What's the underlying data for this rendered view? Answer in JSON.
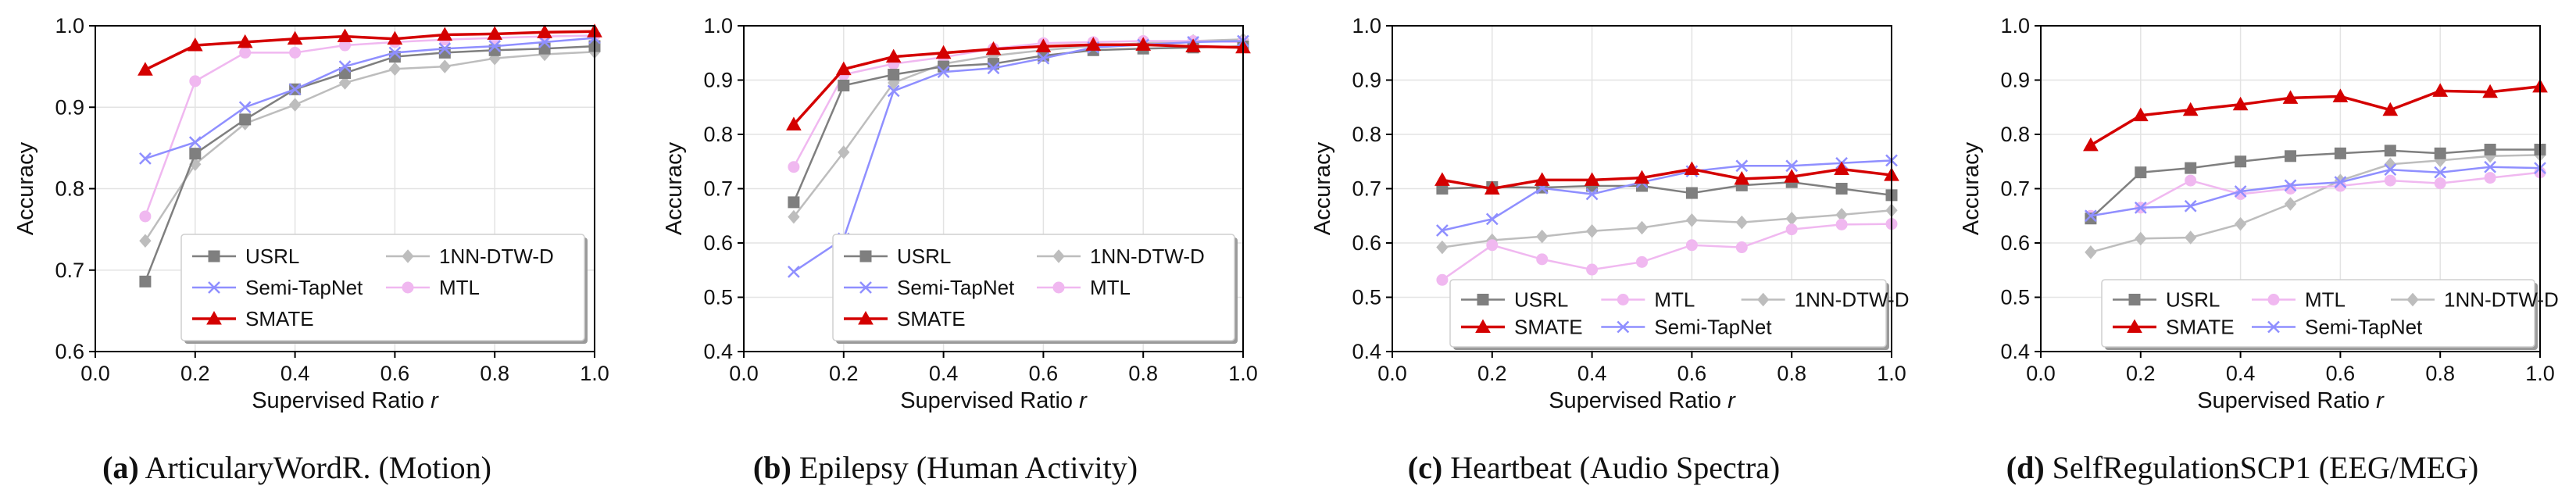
{
  "chart_data": [
    {
      "type": "line",
      "caption": {
        "label": "(a)",
        "text": "ArticularyWordR. (Motion)"
      },
      "xlabel": "Supervised Ratio",
      "xlabel_var": "r",
      "ylabel": "Accuracy",
      "xlim": [
        0.0,
        1.0
      ],
      "ylim": [
        0.6,
        1.0
      ],
      "xticks": [
        "0.0",
        "0.2",
        "0.4",
        "0.6",
        "0.8",
        "1.0"
      ],
      "yticks": [
        "0.6",
        "0.7",
        "0.8",
        "0.9",
        "1.0"
      ],
      "grid": true,
      "legend_placement": "lower-center",
      "legend_cols": 2,
      "x": [
        0.1,
        0.2,
        0.3,
        0.4,
        0.5,
        0.6,
        0.7,
        0.8,
        0.9,
        1.0
      ],
      "series": [
        {
          "name": "USRL",
          "values": [
            0.686,
            0.843,
            0.885,
            0.922,
            0.942,
            0.962,
            0.967,
            0.97,
            0.972,
            0.975
          ]
        },
        {
          "name": "Semi-TapNet",
          "values": [
            0.837,
            0.857,
            0.9,
            0.922,
            0.95,
            0.967,
            0.972,
            0.975,
            0.98,
            0.985
          ]
        },
        {
          "name": "SMATE",
          "values": [
            0.946,
            0.976,
            0.98,
            0.984,
            0.987,
            0.984,
            0.989,
            0.99,
            0.992,
            0.993
          ]
        },
        {
          "name": "1NN-DTW-D",
          "values": [
            0.736,
            0.83,
            0.88,
            0.903,
            0.93,
            0.947,
            0.95,
            0.96,
            0.965,
            0.968
          ]
        },
        {
          "name": "MTL",
          "values": [
            0.766,
            0.932,
            0.967,
            0.967,
            0.976,
            0.98,
            0.983,
            0.985,
            0.987,
            0.988
          ]
        }
      ]
    },
    {
      "type": "line",
      "caption": {
        "label": "(b)",
        "text": "Epilepsy (Human Activity)"
      },
      "xlabel": "Supervised Ratio",
      "xlabel_var": "r",
      "ylabel": "Accuracy",
      "xlim": [
        0.0,
        1.0
      ],
      "ylim": [
        0.4,
        1.0
      ],
      "xticks": [
        "0.0",
        "0.2",
        "0.4",
        "0.6",
        "0.8",
        "1.0"
      ],
      "yticks": [
        "0.4",
        "0.5",
        "0.6",
        "0.7",
        "0.8",
        "0.9",
        "1.0"
      ],
      "grid": true,
      "legend_placement": "lower-center",
      "legend_cols": 2,
      "x": [
        0.1,
        0.2,
        0.3,
        0.4,
        0.5,
        0.6,
        0.7,
        0.8,
        0.9,
        1.0
      ],
      "series": [
        {
          "name": "USRL",
          "values": [
            0.675,
            0.89,
            0.91,
            0.925,
            0.93,
            0.945,
            0.955,
            0.958,
            0.96,
            0.962
          ]
        },
        {
          "name": "Semi-TapNet",
          "values": [
            0.547,
            0.608,
            0.88,
            0.915,
            0.922,
            0.94,
            0.96,
            0.965,
            0.97,
            0.972
          ]
        },
        {
          "name": "SMATE",
          "values": [
            0.818,
            0.92,
            0.943,
            0.95,
            0.957,
            0.962,
            0.965,
            0.965,
            0.962,
            0.96
          ]
        },
        {
          "name": "1NN-DTW-D",
          "values": [
            0.648,
            0.767,
            0.895,
            0.93,
            0.945,
            0.955,
            0.963,
            0.968,
            0.972,
            0.975
          ]
        },
        {
          "name": "MTL",
          "values": [
            0.74,
            0.91,
            0.93,
            0.942,
            0.958,
            0.968,
            0.97,
            0.972,
            0.972,
            0.97
          ]
        }
      ]
    },
    {
      "type": "line",
      "caption": {
        "label": "(c)",
        "text": "Heartbeat (Audio Spectra)"
      },
      "xlabel": "Supervised Ratio",
      "xlabel_var": "r",
      "ylabel": "Accuracy",
      "xlim": [
        0.0,
        1.0
      ],
      "ylim": [
        0.4,
        1.0
      ],
      "xticks": [
        "0.0",
        "0.2",
        "0.4",
        "0.6",
        "0.8",
        "1.0"
      ],
      "yticks": [
        "0.4",
        "0.5",
        "0.6",
        "0.7",
        "0.8",
        "0.9",
        "1.0"
      ],
      "grid": true,
      "legend_placement": "lower-center",
      "legend_cols": 3,
      "x": [
        0.1,
        0.2,
        0.3,
        0.4,
        0.5,
        0.6,
        0.7,
        0.8,
        0.9,
        1.0
      ],
      "series": [
        {
          "name": "USRL",
          "values": [
            0.7,
            0.703,
            0.702,
            0.705,
            0.705,
            0.692,
            0.706,
            0.712,
            0.7,
            0.688
          ]
        },
        {
          "name": "SMATE",
          "values": [
            0.716,
            0.7,
            0.716,
            0.716,
            0.72,
            0.736,
            0.718,
            0.722,
            0.736,
            0.725
          ]
        },
        {
          "name": "MTL",
          "values": [
            0.532,
            0.596,
            0.57,
            0.551,
            0.565,
            0.596,
            0.592,
            0.625,
            0.634,
            0.635
          ]
        },
        {
          "name": "Semi-TapNet",
          "values": [
            0.623,
            0.644,
            0.701,
            0.69,
            0.712,
            0.732,
            0.742,
            0.742,
            0.747,
            0.752
          ]
        },
        {
          "name": "1NN-DTW-D",
          "values": [
            0.592,
            0.605,
            0.612,
            0.622,
            0.628,
            0.642,
            0.638,
            0.645,
            0.652,
            0.66
          ]
        }
      ]
    },
    {
      "type": "line",
      "caption": {
        "label": "(d)",
        "text": "SelfRegulationSCP1 (EEG/MEG)"
      },
      "xlabel": "Supervised Ratio",
      "xlabel_var": "r",
      "ylabel": "Accuracy",
      "xlim": [
        0.0,
        1.0
      ],
      "ylim": [
        0.4,
        1.0
      ],
      "xticks": [
        "0.0",
        "0.2",
        "0.4",
        "0.6",
        "0.8",
        "1.0"
      ],
      "yticks": [
        "0.4",
        "0.5",
        "0.6",
        "0.7",
        "0.8",
        "0.9",
        "1.0"
      ],
      "grid": true,
      "legend_placement": "lower-center",
      "legend_cols": 3,
      "x": [
        0.1,
        0.2,
        0.3,
        0.4,
        0.5,
        0.6,
        0.7,
        0.8,
        0.9,
        1.0
      ],
      "series": [
        {
          "name": "USRL",
          "values": [
            0.645,
            0.73,
            0.738,
            0.75,
            0.76,
            0.765,
            0.77,
            0.765,
            0.772,
            0.772
          ]
        },
        {
          "name": "SMATE",
          "values": [
            0.78,
            0.835,
            0.845,
            0.855,
            0.867,
            0.87,
            0.845,
            0.88,
            0.878,
            0.888
          ]
        },
        {
          "name": "MTL",
          "values": [
            0.65,
            0.665,
            0.715,
            0.69,
            0.7,
            0.705,
            0.715,
            0.71,
            0.72,
            0.73
          ]
        },
        {
          "name": "Semi-TapNet",
          "values": [
            0.65,
            0.665,
            0.668,
            0.695,
            0.706,
            0.712,
            0.735,
            0.73,
            0.74,
            0.738
          ]
        },
        {
          "name": "1NN-DTW-D",
          "values": [
            0.583,
            0.608,
            0.61,
            0.635,
            0.672,
            0.715,
            0.745,
            0.752,
            0.76,
            0.762
          ]
        }
      ]
    }
  ],
  "series_styles": {
    "USRL": {
      "color": "#7f7f7f",
      "marker": "square"
    },
    "Semi-TapNet": {
      "color": "#8f8fff",
      "marker": "x"
    },
    "SMATE": {
      "color": "#d40000",
      "marker": "triangle"
    },
    "1NN-DTW-D": {
      "color": "#bdbdbd",
      "marker": "diamond"
    },
    "MTL": {
      "color": "#f0b8f0",
      "marker": "circle"
    }
  }
}
